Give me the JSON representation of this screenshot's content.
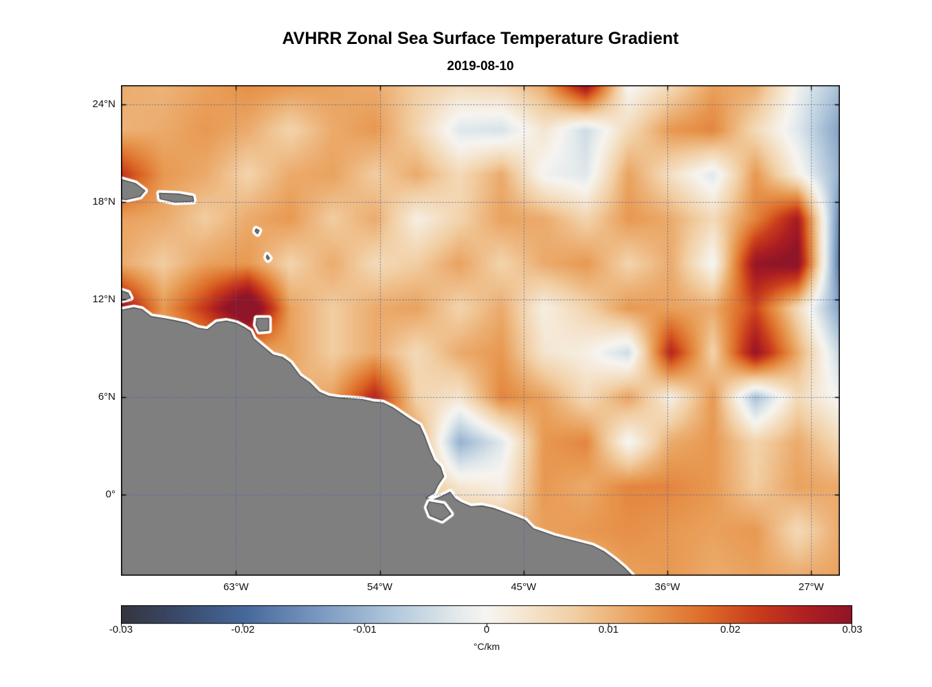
{
  "figure": {
    "title": "AVHRR Zonal Sea Surface Temperature Gradient",
    "subtitle": "2019-08-10"
  },
  "axes": {
    "xlim": [
      -70.2,
      -25.2
    ],
    "ylim": [
      -5.0,
      25.2
    ],
    "x_ticks": [
      {
        "value": -63,
        "label": "63°W"
      },
      {
        "value": -54,
        "label": "54°W"
      },
      {
        "value": -45,
        "label": "45°W"
      },
      {
        "value": -36,
        "label": "36°W"
      },
      {
        "value": -27,
        "label": "27°W"
      }
    ],
    "y_ticks": [
      {
        "value": 24,
        "label": "24°N"
      },
      {
        "value": 18,
        "label": "18°N"
      },
      {
        "value": 12,
        "label": "12°N"
      },
      {
        "value": 6,
        "label": "6°N"
      },
      {
        "value": 0,
        "label": "0°"
      }
    ],
    "grid_style": "dotted",
    "grid_color": "rgba(70,100,160,0.75)"
  },
  "colorbar": {
    "min": -0.03,
    "max": 0.03,
    "ticks": [
      -0.03,
      -0.02,
      -0.01,
      0,
      0.01,
      0.02,
      0.03
    ],
    "tick_labels": [
      "-0.03",
      "-0.02",
      "-0.01",
      "0",
      "0.01",
      "0.02",
      "0.03"
    ],
    "units": "°C/km"
  },
  "chart_data": {
    "type": "heatmap",
    "title": "AVHRR Zonal Sea Surface Temperature Gradient",
    "date": "2019-08-10",
    "units": "°C/km",
    "lon_range": [
      -70.2,
      -25.2
    ],
    "lat_range": [
      -5.0,
      25.2
    ],
    "value_range": [
      -0.03,
      0.03
    ],
    "colormap": [
      [
        0.0,
        "#35353d"
      ],
      [
        0.08,
        "#3a4a6b"
      ],
      [
        0.17,
        "#46699c"
      ],
      [
        0.28,
        "#7f9dc4"
      ],
      [
        0.38,
        "#b6cbdd"
      ],
      [
        0.46,
        "#e3eaec"
      ],
      [
        0.5,
        "#f7f5f1"
      ],
      [
        0.54,
        "#f5ead9"
      ],
      [
        0.62,
        "#f2cfa4"
      ],
      [
        0.72,
        "#e89a52"
      ],
      [
        0.8,
        "#dd6b28"
      ],
      [
        0.87,
        "#c93c1c"
      ],
      [
        0.94,
        "#ad1f22"
      ],
      [
        1.0,
        "#8f1528"
      ]
    ],
    "grid_lon": [
      -70.2,
      -67.55,
      -64.91,
      -62.26,
      -59.61,
      -56.97,
      -54.32,
      -51.67,
      -49.02,
      -46.38,
      -43.73,
      -41.08,
      -38.44,
      -35.79,
      -33.14,
      -30.49,
      -27.85,
      -25.2
    ],
    "grid_lat": [
      25.2,
      22.45,
      19.71,
      16.96,
      14.22,
      11.47,
      8.73,
      5.98,
      3.24,
      0.49,
      -2.25,
      -5.0
    ],
    "values": [
      [
        0.002,
        0.001,
        0.003,
        0.005,
        0.004,
        0.003,
        0.002,
        -0.002,
        -0.004,
        -0.003,
        0.002,
        0.02,
        -0.01,
        -0.004,
        0.003,
        0.002,
        -0.01,
        -0.018
      ],
      [
        0.001,
        0.002,
        0.004,
        0.002,
        -0.003,
        0.002,
        0.004,
        -0.003,
        -0.012,
        -0.013,
        -0.006,
        -0.014,
        -0.004,
        0.004,
        0.006,
        -0.004,
        -0.012,
        -0.022
      ],
      [
        0.014,
        0.004,
        0.002,
        -0.003,
        0.002,
        0.003,
        -0.002,
        0.002,
        -0.004,
        0.002,
        -0.01,
        -0.012,
        0.003,
        -0.005,
        -0.012,
        0.004,
        -0.008,
        -0.02
      ],
      [
        0.003,
        0.002,
        -0.002,
        0.002,
        0.004,
        -0.002,
        0.002,
        -0.008,
        -0.003,
        0.003,
        0.002,
        -0.003,
        0.004,
        0.002,
        -0.004,
        0.006,
        0.018,
        -0.026
      ],
      [
        0.002,
        -0.002,
        0.003,
        0.004,
        -0.003,
        0.002,
        -0.004,
        -0.002,
        0.003,
        -0.003,
        0.002,
        0.004,
        -0.003,
        0.002,
        -0.01,
        0.02,
        0.022,
        -0.028
      ],
      [
        0.02,
        0.004,
        0.014,
        0.028,
        0.003,
        -0.002,
        0.002,
        0.003,
        -0.003,
        0.002,
        -0.008,
        -0.003,
        0.004,
        0.003,
        0.002,
        0.012,
        -0.004,
        -0.022
      ],
      [
        0,
        0,
        0.003,
        0.002,
        0.003,
        -0.002,
        0.002,
        -0.004,
        0.002,
        0.004,
        -0.006,
        -0.008,
        -0.014,
        0.016,
        -0.003,
        0.02,
        0.002,
        -0.015
      ],
      [
        0,
        0,
        0,
        0,
        0,
        0.003,
        0.016,
        -0.003,
        -0.006,
        0.006,
        0.003,
        -0.004,
        0.003,
        -0.008,
        0.004,
        -0.018,
        -0.004,
        -0.01
      ],
      [
        0,
        0,
        0,
        0,
        0,
        0,
        0,
        0.004,
        -0.02,
        -0.012,
        0.004,
        0.006,
        -0.01,
        0.002,
        0.004,
        -0.003,
        0.002,
        -0.004
      ],
      [
        0,
        0,
        0,
        0,
        0,
        0,
        0,
        0,
        -0.006,
        -0.008,
        0.004,
        0.002,
        0.006,
        0.006,
        0.004,
        -0.002,
        0.003,
        0.002
      ],
      [
        0,
        0,
        0,
        0,
        0,
        0,
        0,
        0,
        0,
        0,
        0.003,
        0.004,
        0.005,
        0.004,
        0.003,
        0.004,
        -0.004,
        0.002
      ],
      [
        0,
        0,
        0,
        0,
        0,
        0,
        0,
        0,
        0,
        0,
        0,
        0,
        0.003,
        0.004,
        0.002,
        0.003,
        0.002,
        0.003
      ]
    ],
    "noise": {
      "seed": 11,
      "bias": 0.0008,
      "octaves": [
        {
          "freq": 0.055,
          "amp": 0.0045
        },
        {
          "freq": 0.15,
          "amp": 0.0022
        },
        {
          "freq": 0.018,
          "amp": 0.0018
        }
      ]
    },
    "land": {
      "fill": "#7f7f7f",
      "outline": "#333333",
      "halo": "#ffffff",
      "polygons": {
        "mainland": [
          [
            -70.2,
            11.35
          ],
          [
            -69.4,
            11.5
          ],
          [
            -68.9,
            11.4
          ],
          [
            -68.3,
            10.95
          ],
          [
            -67.6,
            10.85
          ],
          [
            -66.9,
            10.72
          ],
          [
            -66.1,
            10.55
          ],
          [
            -65.4,
            10.25
          ],
          [
            -64.8,
            10.15
          ],
          [
            -64.2,
            10.6
          ],
          [
            -63.6,
            10.68
          ],
          [
            -63.0,
            10.55
          ],
          [
            -62.5,
            10.3
          ],
          [
            -62.1,
            10.05
          ],
          [
            -61.9,
            9.6
          ],
          [
            -61.3,
            9.1
          ],
          [
            -60.7,
            8.6
          ],
          [
            -60.1,
            8.45
          ],
          [
            -59.6,
            8.1
          ],
          [
            -59.0,
            7.3
          ],
          [
            -58.4,
            6.9
          ],
          [
            -57.8,
            6.3
          ],
          [
            -57.2,
            6.05
          ],
          [
            -56.5,
            5.95
          ],
          [
            -55.8,
            5.9
          ],
          [
            -55.1,
            5.85
          ],
          [
            -54.4,
            5.7
          ],
          [
            -53.8,
            5.65
          ],
          [
            -53.2,
            5.35
          ],
          [
            -52.6,
            4.95
          ],
          [
            -52.0,
            4.55
          ],
          [
            -51.5,
            4.25
          ],
          [
            -51.2,
            3.6
          ],
          [
            -50.9,
            2.8
          ],
          [
            -50.6,
            2.1
          ],
          [
            -50.2,
            1.7
          ],
          [
            -50.0,
            1.1
          ],
          [
            -50.35,
            0.6
          ],
          [
            -50.6,
            0.1
          ],
          [
            -51.1,
            -0.2
          ],
          [
            -50.7,
            -0.35
          ],
          [
            -50.1,
            -0.1
          ],
          [
            -49.6,
            0.15
          ],
          [
            -49.3,
            -0.25
          ],
          [
            -48.9,
            -0.5
          ],
          [
            -48.3,
            -0.75
          ],
          [
            -47.6,
            -0.7
          ],
          [
            -46.9,
            -0.85
          ],
          [
            -46.2,
            -1.1
          ],
          [
            -45.5,
            -1.35
          ],
          [
            -44.9,
            -1.6
          ],
          [
            -44.4,
            -2.1
          ],
          [
            -43.8,
            -2.3
          ],
          [
            -43.1,
            -2.55
          ],
          [
            -42.3,
            -2.75
          ],
          [
            -41.5,
            -2.95
          ],
          [
            -40.7,
            -3.15
          ],
          [
            -40.0,
            -3.5
          ],
          [
            -39.3,
            -4.0
          ],
          [
            -38.7,
            -4.5
          ],
          [
            -38.2,
            -5.0
          ],
          [
            -70.2,
            -5.0
          ]
        ],
        "hispaniola_east": [
          [
            -70.2,
            19.4
          ],
          [
            -69.3,
            19.15
          ],
          [
            -68.7,
            18.7
          ],
          [
            -69.0,
            18.35
          ],
          [
            -69.9,
            18.15
          ],
          [
            -70.2,
            18.2
          ]
        ],
        "puerto_rico": [
          [
            -67.8,
            18.55
          ],
          [
            -66.6,
            18.5
          ],
          [
            -65.7,
            18.35
          ],
          [
            -65.65,
            18.05
          ],
          [
            -66.8,
            18.0
          ],
          [
            -67.75,
            18.2
          ]
        ],
        "paraguana": [
          [
            -70.2,
            12.55
          ],
          [
            -69.75,
            12.4
          ],
          [
            -69.6,
            12.1
          ],
          [
            -70.2,
            11.95
          ]
        ],
        "trinidad": [
          [
            -61.7,
            10.85
          ],
          [
            -60.95,
            10.85
          ],
          [
            -60.95,
            10.1
          ],
          [
            -61.55,
            10.05
          ],
          [
            -61.75,
            10.45
          ]
        ],
        "guadeloupe": [
          [
            -61.75,
            16.35
          ],
          [
            -61.55,
            16.25
          ],
          [
            -61.65,
            16.05
          ],
          [
            -61.8,
            16.2
          ]
        ],
        "martinique": [
          [
            -61.05,
            14.75
          ],
          [
            -60.9,
            14.55
          ],
          [
            -61.0,
            14.45
          ],
          [
            -61.1,
            14.6
          ]
        ],
        "marajo": [
          [
            -50.9,
            -0.45
          ],
          [
            -50.0,
            -0.6
          ],
          [
            -49.55,
            -1.2
          ],
          [
            -50.1,
            -1.6
          ],
          [
            -50.85,
            -1.3
          ],
          [
            -51.05,
            -0.8
          ]
        ]
      }
    }
  }
}
